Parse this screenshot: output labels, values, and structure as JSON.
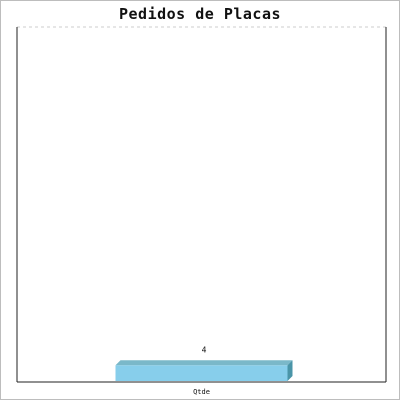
{
  "chart_data": {
    "type": "bar",
    "title": "Pedidos de Placas",
    "categories": [
      "Qtde"
    ],
    "values": [
      4
    ],
    "data_labels": [
      "4"
    ],
    "xlabel": "",
    "ylabel": "",
    "ylim": [
      0,
      85
    ],
    "grid": "top dashed line",
    "three_d": true
  },
  "colors": {
    "bar_front": "#87ceeb",
    "bar_top": "#7ab8c9",
    "bar_side": "#4a95a8",
    "axis": "#222222",
    "grid": "#cccccc"
  }
}
